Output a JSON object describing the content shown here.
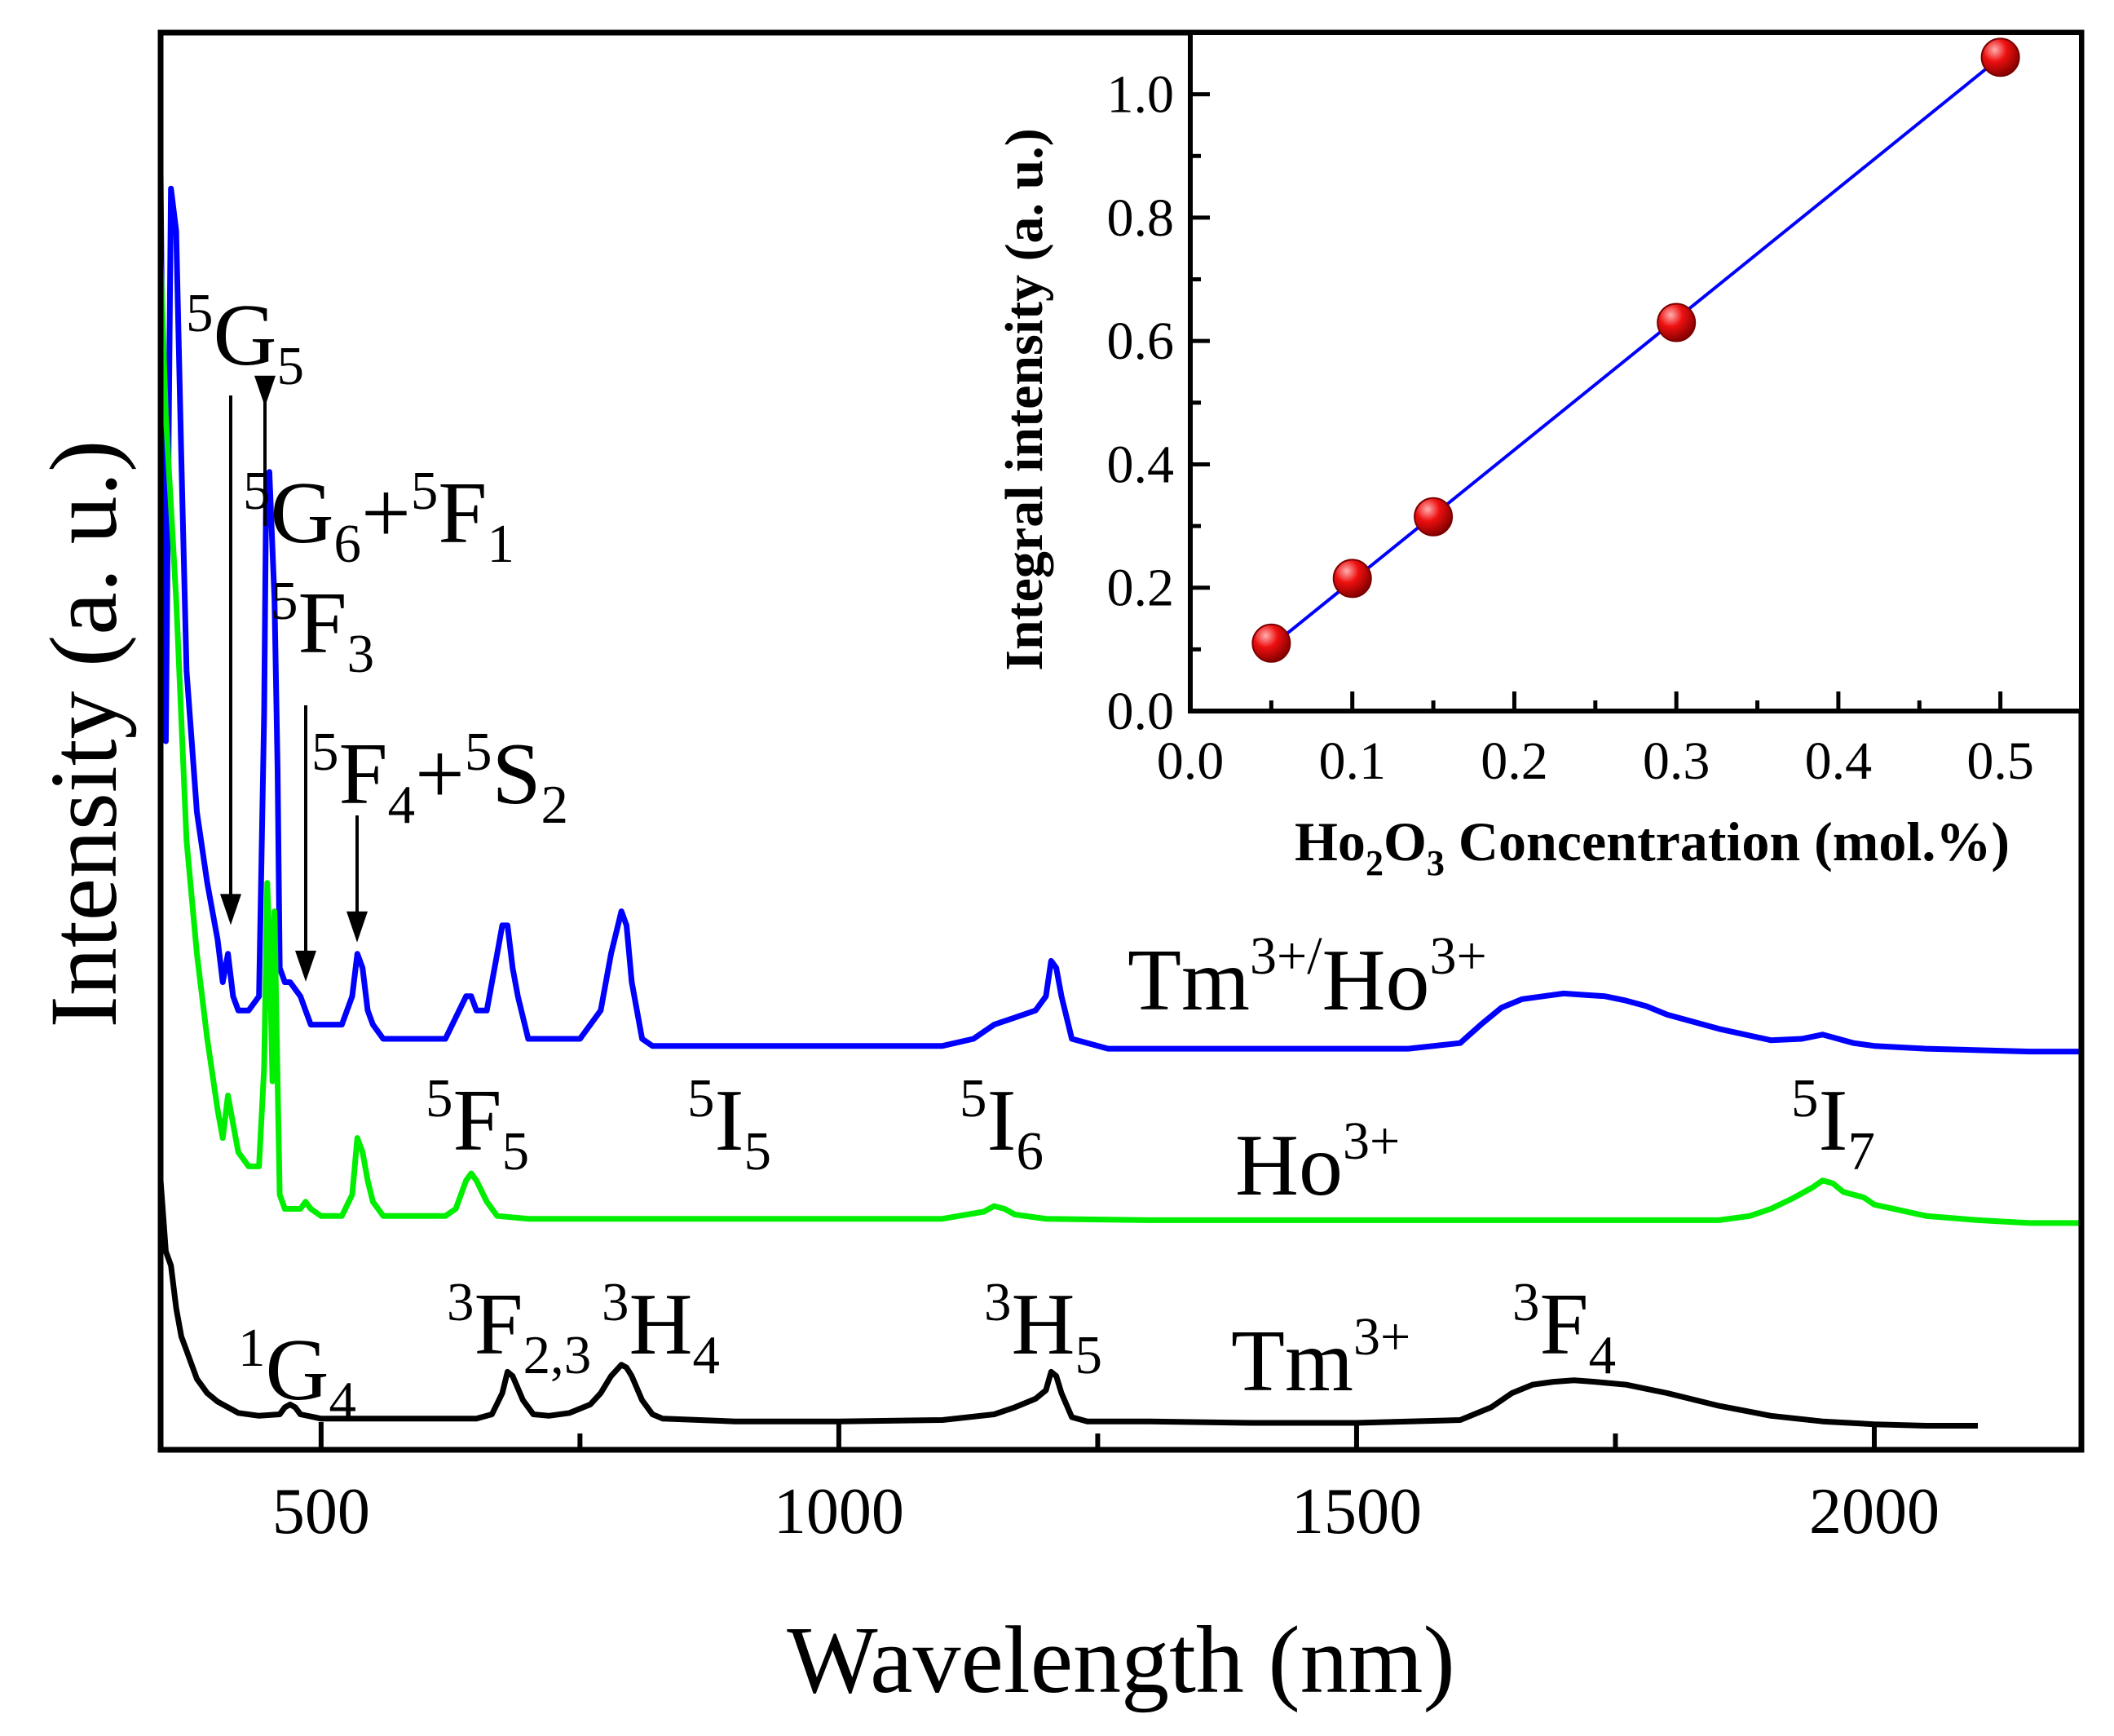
{
  "chart_data": [
    {
      "type": "line",
      "title": "",
      "xlabel": "Wavelength (nm)",
      "ylabel": "Intensity (a. u.)",
      "xlim": [
        345,
        2200
      ],
      "ylim": [
        0,
        1.0
      ],
      "xticks": [
        500,
        1000,
        1500,
        2000
      ],
      "xtick_labels": [
        "500",
        "1000",
        "1500",
        "2000"
      ],
      "grid": false,
      "series": [
        {
          "name": "Tm3+/Ho3+",
          "color": "#0000ff",
          "x": [
            345,
            350,
            355,
            360,
            365,
            370,
            380,
            390,
            400,
            405,
            410,
            415,
            420,
            430,
            440,
            445,
            447,
            450,
            455,
            458,
            460,
            465,
            470,
            480,
            485,
            490,
            500,
            520,
            530,
            535,
            540,
            545,
            550,
            560,
            600,
            620,
            640,
            645,
            650,
            655,
            660,
            670,
            675,
            680,
            685,
            690,
            700,
            720,
            750,
            770,
            780,
            790,
            795,
            800,
            810,
            820,
            900,
            1000,
            1100,
            1130,
            1150,
            1170,
            1190,
            1200,
            1205,
            1210,
            1215,
            1225,
            1260,
            1400,
            1550,
            1600,
            1620,
            1640,
            1660,
            1680,
            1700,
            1720,
            1740,
            1760,
            1780,
            1800,
            1850,
            1900,
            1930,
            1950,
            1960,
            1980,
            2000,
            2050,
            2100,
            2150,
            2200
          ],
          "values": [
            0.9,
            0.5,
            0.89,
            0.86,
            0.7,
            0.55,
            0.45,
            0.4,
            0.36,
            0.33,
            0.35,
            0.32,
            0.31,
            0.31,
            0.32,
            0.52,
            0.68,
            0.69,
            0.6,
            0.48,
            0.34,
            0.33,
            0.33,
            0.32,
            0.31,
            0.3,
            0.3,
            0.3,
            0.32,
            0.35,
            0.34,
            0.31,
            0.3,
            0.29,
            0.29,
            0.29,
            0.32,
            0.32,
            0.31,
            0.31,
            0.31,
            0.35,
            0.37,
            0.37,
            0.34,
            0.32,
            0.29,
            0.29,
            0.29,
            0.31,
            0.35,
            0.38,
            0.37,
            0.33,
            0.29,
            0.285,
            0.285,
            0.285,
            0.285,
            0.29,
            0.3,
            0.305,
            0.31,
            0.32,
            0.345,
            0.34,
            0.32,
            0.29,
            0.283,
            0.283,
            0.283,
            0.287,
            0.3,
            0.312,
            0.318,
            0.32,
            0.322,
            0.321,
            0.32,
            0.317,
            0.313,
            0.307,
            0.297,
            0.289,
            0.29,
            0.293,
            0.291,
            0.287,
            0.285,
            0.283,
            0.282,
            0.281,
            0.281
          ]
        },
        {
          "name": "Ho3+",
          "color": "#00ee00",
          "x": [
            345,
            350,
            360,
            370,
            380,
            390,
            400,
            405,
            410,
            415,
            420,
            430,
            440,
            445,
            448,
            450,
            453,
            455,
            457,
            460,
            465,
            470,
            480,
            485,
            490,
            500,
            520,
            530,
            535,
            540,
            545,
            550,
            560,
            600,
            620,
            630,
            640,
            645,
            650,
            660,
            670,
            700,
            800,
            900,
            1000,
            1100,
            1140,
            1150,
            1160,
            1170,
            1200,
            1300,
            1500,
            1700,
            1850,
            1880,
            1900,
            1920,
            1940,
            1950,
            1960,
            1970,
            1990,
            2000,
            2050,
            2100,
            2150,
            2200
          ],
          "values": [
            0.84,
            0.73,
            0.6,
            0.43,
            0.35,
            0.29,
            0.24,
            0.22,
            0.25,
            0.23,
            0.21,
            0.2,
            0.2,
            0.27,
            0.4,
            0.36,
            0.26,
            0.38,
            0.3,
            0.18,
            0.17,
            0.17,
            0.17,
            0.175,
            0.17,
            0.165,
            0.165,
            0.18,
            0.22,
            0.21,
            0.19,
            0.175,
            0.165,
            0.165,
            0.165,
            0.17,
            0.19,
            0.195,
            0.19,
            0.175,
            0.165,
            0.163,
            0.163,
            0.163,
            0.163,
            0.163,
            0.168,
            0.172,
            0.17,
            0.166,
            0.163,
            0.162,
            0.162,
            0.162,
            0.162,
            0.165,
            0.17,
            0.177,
            0.185,
            0.19,
            0.188,
            0.182,
            0.178,
            0.173,
            0.165,
            0.162,
            0.16,
            0.16
          ]
        },
        {
          "name": "Tm3+",
          "color": "#000000",
          "x": [
            345,
            350,
            355,
            360,
            365,
            370,
            380,
            390,
            400,
            420,
            440,
            460,
            465,
            470,
            475,
            480,
            500,
            600,
            650,
            665,
            675,
            680,
            685,
            695,
            705,
            720,
            740,
            760,
            770,
            780,
            790,
            795,
            800,
            810,
            820,
            830,
            900,
            1000,
            1100,
            1150,
            1170,
            1190,
            1200,
            1205,
            1210,
            1215,
            1225,
            1240,
            1300,
            1400,
            1500,
            1600,
            1630,
            1650,
            1670,
            1690,
            1710,
            1730,
            1760,
            1800,
            1850,
            1900,
            1950,
            2000,
            2050,
            2100
          ],
          "values": [
            0.19,
            0.14,
            0.13,
            0.1,
            0.08,
            0.07,
            0.05,
            0.04,
            0.034,
            0.026,
            0.024,
            0.025,
            0.03,
            0.032,
            0.03,
            0.025,
            0.022,
            0.022,
            0.022,
            0.025,
            0.04,
            0.055,
            0.052,
            0.035,
            0.025,
            0.024,
            0.026,
            0.032,
            0.04,
            0.052,
            0.06,
            0.058,
            0.052,
            0.035,
            0.025,
            0.022,
            0.02,
            0.02,
            0.021,
            0.025,
            0.03,
            0.036,
            0.042,
            0.055,
            0.052,
            0.04,
            0.023,
            0.02,
            0.02,
            0.019,
            0.019,
            0.021,
            0.03,
            0.04,
            0.046,
            0.048,
            0.049,
            0.048,
            0.046,
            0.04,
            0.031,
            0.024,
            0.02,
            0.018,
            0.017,
            0.017
          ]
        }
      ],
      "series_labels": [
        {
          "base": "Tm",
          "sup": "3+/",
          "rest": "Ho",
          "sup2": "3+"
        },
        {
          "base": "Ho",
          "sup": "3+"
        },
        {
          "base": "Tm",
          "sup": "3+"
        }
      ],
      "annotations": [
        {
          "id": "5G5",
          "pre": "5",
          "main": "G",
          "sub": "5"
        },
        {
          "id": "5G6-5F1",
          "pre": "5",
          "main": "G",
          "sub": "6",
          "join": "+",
          "pre2": "5",
          "main2": "F",
          "sub2": "1"
        },
        {
          "id": "5F3",
          "pre": "5",
          "main": "F",
          "sub": "3"
        },
        {
          "id": "5F4-5S2",
          "pre": "5",
          "main": "F",
          "sub": "4",
          "join": "+",
          "pre2": "5",
          "main2": "S",
          "sub2": "2"
        },
        {
          "id": "5F5",
          "pre": "5",
          "main": "F",
          "sub": "5"
        },
        {
          "id": "5I5",
          "pre": "5",
          "main": "I",
          "sub": "5"
        },
        {
          "id": "5I6",
          "pre": "5",
          "main": "I",
          "sub": "6"
        },
        {
          "id": "5I7",
          "pre": "5",
          "main": "I",
          "sub": "7"
        },
        {
          "id": "1G4",
          "pre": "1",
          "main": "G",
          "sub": "4"
        },
        {
          "id": "3F23",
          "pre": "3",
          "main": "F",
          "sub": "2,3"
        },
        {
          "id": "3H4",
          "pre": "3",
          "main": "H",
          "sub": "4"
        },
        {
          "id": "3H5",
          "pre": "3",
          "main": "H",
          "sub": "5"
        },
        {
          "id": "3F4",
          "pre": "3",
          "main": "F",
          "sub": "4"
        }
      ]
    },
    {
      "type": "scatter",
      "title": "",
      "xlabel_parts": {
        "a": "Ho",
        "sub1": "2",
        "b": "O",
        "sub2": "3",
        "c": " Concentration (mol.%)"
      },
      "ylabel": "Integral intensity (a. u.)",
      "xlim": [
        0.0,
        0.55
      ],
      "ylim": [
        0.0,
        1.1
      ],
      "xticks": [
        0.0,
        0.1,
        0.2,
        0.3,
        0.4,
        0.5
      ],
      "xtick_labels": [
        "0.0",
        "0.1",
        "0.2",
        "0.3",
        "0.4",
        "0.5"
      ],
      "yticks": [
        0.0,
        0.2,
        0.4,
        0.6,
        0.8,
        1.0
      ],
      "ytick_labels": [
        "0.0",
        "0.2",
        "0.4",
        "0.6",
        "0.8",
        "1.0"
      ],
      "points": {
        "x": [
          0.05,
          0.1,
          0.15,
          0.3,
          0.5
        ],
        "y": [
          0.11,
          0.215,
          0.315,
          0.63,
          1.06
        ]
      },
      "point_color": "#ff0000",
      "fit": {
        "x": [
          0.05,
          0.5
        ],
        "y": [
          0.105,
          1.06
        ],
        "color": "#0000ff"
      }
    }
  ]
}
